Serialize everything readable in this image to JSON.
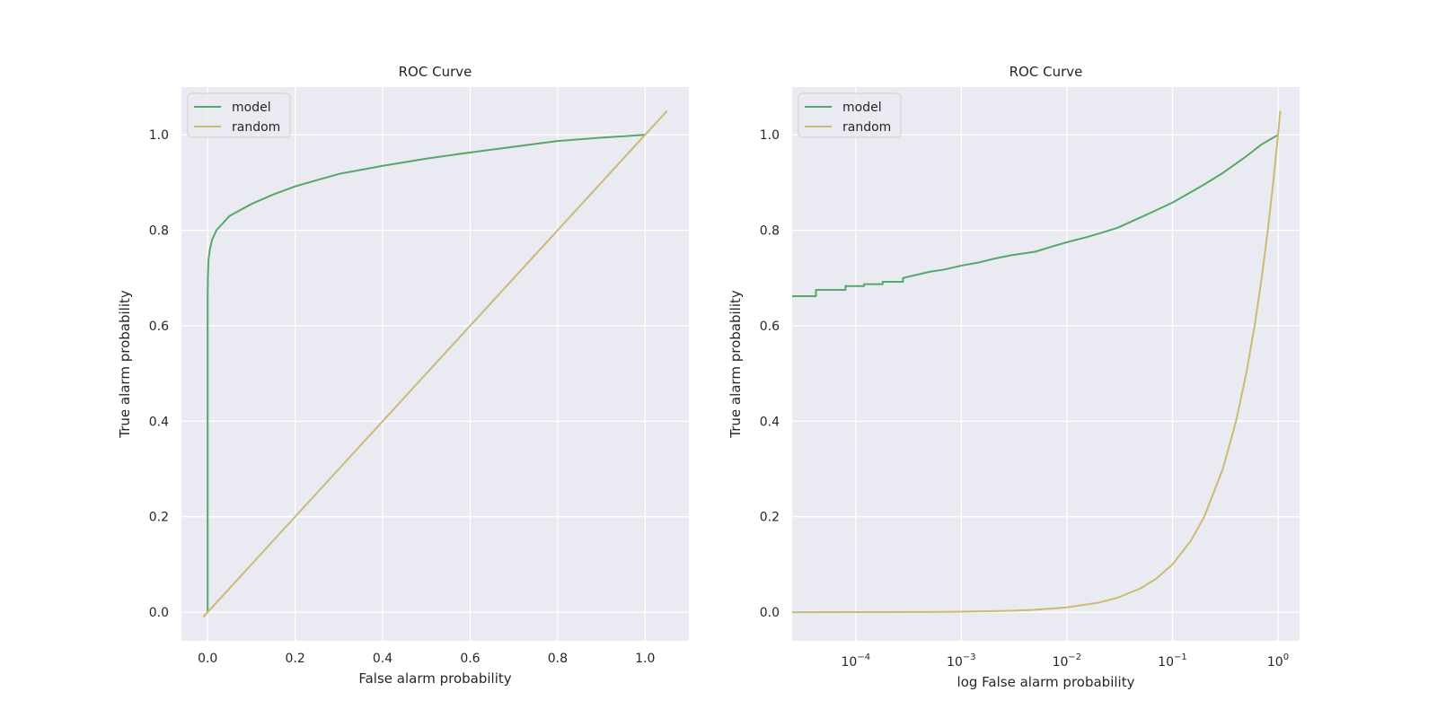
{
  "chart_data": [
    {
      "type": "line",
      "title": "ROC Curve",
      "xlabel": "False alarm probability",
      "ylabel": "True alarm probability",
      "xscale": "linear",
      "xlim": [
        -0.06,
        1.1
      ],
      "ylim": [
        -0.06,
        1.1
      ],
      "xticks": [
        0.0,
        0.2,
        0.4,
        0.6,
        0.8,
        1.0
      ],
      "xtick_labels": [
        "0.0",
        "0.2",
        "0.4",
        "0.6",
        "0.8",
        "1.0"
      ],
      "yticks": [
        0.0,
        0.2,
        0.4,
        0.6,
        0.8,
        1.0
      ],
      "ytick_labels": [
        "0.0",
        "0.2",
        "0.4",
        "0.6",
        "0.8",
        "1.0"
      ],
      "grid": true,
      "legend": "upper-left",
      "series": [
        {
          "name": "model",
          "color": "#55a868",
          "x": [
            0,
            0,
            0.0005,
            0.002,
            0.005,
            0.01,
            0.02,
            0.03,
            0.04,
            0.05,
            0.07,
            0.1,
            0.15,
            0.2,
            0.25,
            0.3,
            0.4,
            0.5,
            0.6,
            0.7,
            0.8,
            0.9,
            1.0
          ],
          "y": [
            0,
            0.66,
            0.7,
            0.74,
            0.76,
            0.78,
            0.8,
            0.81,
            0.82,
            0.83,
            0.84,
            0.855,
            0.875,
            0.892,
            0.905,
            0.918,
            0.935,
            0.95,
            0.963,
            0.975,
            0.987,
            0.994,
            1.0
          ]
        },
        {
          "name": "random",
          "color": "#ccb974",
          "x": [
            -0.01,
            1.05
          ],
          "y": [
            -0.01,
            1.05
          ]
        }
      ]
    },
    {
      "type": "line",
      "title": "ROC Curve",
      "xlabel": "log False alarm probability",
      "ylabel": "True alarm probability",
      "xscale": "log",
      "xlim": [
        2.5e-05,
        1.6
      ],
      "ylim": [
        -0.06,
        1.1
      ],
      "xticks": [
        0.0001,
        0.001,
        0.01,
        0.1,
        1
      ],
      "xtick_labels": [
        {
          "base": "10",
          "exp": "−4"
        },
        {
          "base": "10",
          "exp": "−3"
        },
        {
          "base": "10",
          "exp": "−2"
        },
        {
          "base": "10",
          "exp": "−1"
        },
        {
          "base": "10",
          "exp": "0"
        }
      ],
      "yticks": [
        0.0,
        0.2,
        0.4,
        0.6,
        0.8,
        1.0
      ],
      "ytick_labels": [
        "0.0",
        "0.2",
        "0.4",
        "0.6",
        "0.8",
        "1.0"
      ],
      "grid": true,
      "legend": "upper-left",
      "series": [
        {
          "name": "model",
          "color": "#55a868",
          "x": [
            2.5e-05,
            4.2e-05,
            4.2e-05,
            8e-05,
            8e-05,
            0.00012,
            0.00012,
            0.00018,
            0.00018,
            0.00028,
            0.00028,
            0.0005,
            0.0007,
            0.001,
            0.0015,
            0.002,
            0.003,
            0.005,
            0.007,
            0.01,
            0.015,
            0.02,
            0.03,
            0.05,
            0.07,
            0.1,
            0.15,
            0.2,
            0.3,
            0.5,
            0.7,
            1.0
          ],
          "y": [
            0.662,
            0.662,
            0.675,
            0.675,
            0.683,
            0.683,
            0.687,
            0.687,
            0.692,
            0.692,
            0.7,
            0.713,
            0.718,
            0.726,
            0.733,
            0.74,
            0.748,
            0.755,
            0.765,
            0.775,
            0.785,
            0.793,
            0.805,
            0.827,
            0.842,
            0.858,
            0.88,
            0.896,
            0.92,
            0.955,
            0.98,
            1.0
          ]
        },
        {
          "name": "random",
          "color": "#ccb974",
          "x": [
            2.5e-05,
            0.0001,
            0.0005,
            0.001,
            0.003,
            0.005,
            0.01,
            0.02,
            0.03,
            0.05,
            0.07,
            0.1,
            0.15,
            0.2,
            0.3,
            0.4,
            0.5,
            0.6,
            0.7,
            0.8,
            0.9,
            1.0,
            1.05
          ],
          "y": [
            2.5e-05,
            0.0001,
            0.0005,
            0.001,
            0.003,
            0.005,
            0.01,
            0.02,
            0.03,
            0.05,
            0.07,
            0.1,
            0.15,
            0.2,
            0.3,
            0.4,
            0.5,
            0.6,
            0.7,
            0.8,
            0.9,
            1.0,
            1.05
          ]
        }
      ]
    }
  ]
}
